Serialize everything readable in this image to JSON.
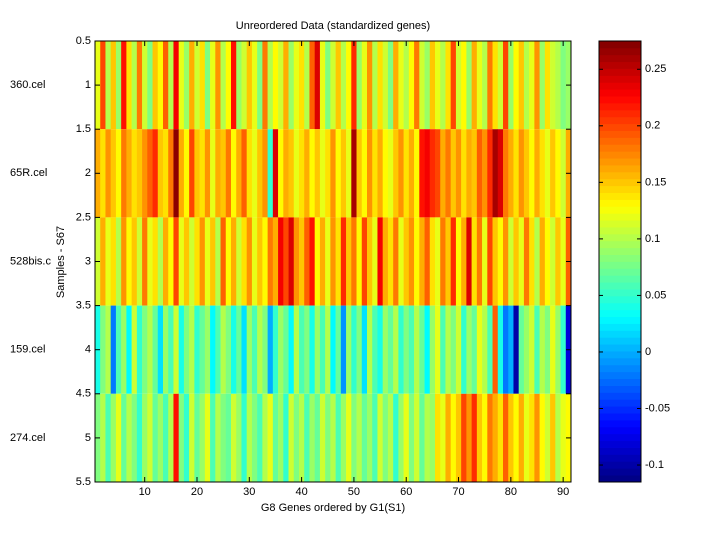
{
  "chart_data": {
    "type": "heatmap",
    "title": "Unreordered Data (standardized genes)",
    "x_label": "G8 Genes ordered by G1(S1)",
    "y_label": "Samples - S67",
    "row_labels": [
      "360.cel",
      "65R.cel",
      "528bis.c",
      "159.cel",
      "274.cel"
    ],
    "xlim": [
      0.5,
      91.5
    ],
    "xticks": [
      10,
      20,
      30,
      40,
      50,
      60,
      70,
      80,
      90
    ],
    "ylim": [
      0.5,
      5.5
    ],
    "yticks": [
      0.5,
      1,
      1.5,
      2,
      2.5,
      3,
      3.5,
      4,
      4.5,
      5,
      5.5
    ],
    "colormap": "jet",
    "clim": [
      -0.115,
      0.275
    ],
    "cticks": [
      -0.1,
      -0.05,
      0,
      0.05,
      0.1,
      0.15,
      0.2,
      0.25
    ],
    "values": [
      [
        0.12,
        0.2,
        0.1,
        0.15,
        0.09,
        0.22,
        0.14,
        0.1,
        0.18,
        0.11,
        0.08,
        0.15,
        0.13,
        0.19,
        0.1,
        0.23,
        0.12,
        0.09,
        0.16,
        0.11,
        0.14,
        0.08,
        0.12,
        0.17,
        0.1,
        0.13,
        0.22,
        0.09,
        0.11,
        0.15,
        0.12,
        0.08,
        0.18,
        0.1,
        0.13,
        0.11,
        0.16,
        0.09,
        0.12,
        0.14,
        0.1,
        0.19,
        0.24,
        0.12,
        0.08,
        0.11,
        0.15,
        0.1,
        0.13,
        0.21,
        0.09,
        0.12,
        0.17,
        0.1,
        0.14,
        0.11,
        0.08,
        0.16,
        0.12,
        0.1,
        0.13,
        0.18,
        0.11,
        0.09,
        0.15,
        0.12,
        0.1,
        0.14,
        0.2,
        0.11,
        0.13,
        0.09,
        0.16,
        0.12,
        0.1,
        0.18,
        0.14,
        0.11,
        0.2,
        0.09,
        0.13,
        0.15,
        0.1,
        0.12,
        0.17,
        0.09,
        0.14,
        0.11,
        0.1,
        0.08,
        0.09
      ],
      [
        0.16,
        0.14,
        0.17,
        0.15,
        0.13,
        0.18,
        0.16,
        0.14,
        0.15,
        0.17,
        0.19,
        0.21,
        0.15,
        0.14,
        0.18,
        0.27,
        0.16,
        0.13,
        0.2,
        0.15,
        0.14,
        0.17,
        0.12,
        0.16,
        0.15,
        0.18,
        0.13,
        0.16,
        0.19,
        0.14,
        0.12,
        0.15,
        0.17,
        0.05,
        0.24,
        0.13,
        0.16,
        0.15,
        0.12,
        0.14,
        0.16,
        0.13,
        0.15,
        0.12,
        0.14,
        0.17,
        0.13,
        0.15,
        0.12,
        0.26,
        0.15,
        0.13,
        0.17,
        0.14,
        0.16,
        0.13,
        0.12,
        0.15,
        0.17,
        0.14,
        0.16,
        0.13,
        0.22,
        0.23,
        0.21,
        0.2,
        0.16,
        0.18,
        0.15,
        0.17,
        0.14,
        0.16,
        0.15,
        0.19,
        0.17,
        0.21,
        0.26,
        0.24,
        0.18,
        0.16,
        0.14,
        0.17,
        0.15,
        0.13,
        0.16,
        0.14,
        0.12,
        0.15,
        0.13,
        0.11,
        0.16
      ],
      [
        0.11,
        0.16,
        0.12,
        0.14,
        0.1,
        0.17,
        0.13,
        0.15,
        0.11,
        0.18,
        0.12,
        0.14,
        0.1,
        0.16,
        0.13,
        0.2,
        0.12,
        0.15,
        0.11,
        0.14,
        0.17,
        0.12,
        0.15,
        0.1,
        0.19,
        0.13,
        0.16,
        0.11,
        0.14,
        0.17,
        0.12,
        0.15,
        0.13,
        0.18,
        0.16,
        0.23,
        0.2,
        0.24,
        0.17,
        0.15,
        0.19,
        0.22,
        0.13,
        0.16,
        0.12,
        0.17,
        0.14,
        0.21,
        0.15,
        0.18,
        0.13,
        0.2,
        0.15,
        0.12,
        0.23,
        0.16,
        0.14,
        0.18,
        0.12,
        0.15,
        0.17,
        0.13,
        0.16,
        0.19,
        0.14,
        0.12,
        0.18,
        0.15,
        0.21,
        0.13,
        0.16,
        0.24,
        0.14,
        0.18,
        0.12,
        0.2,
        0.15,
        0.13,
        0.17,
        0.11,
        0.15,
        0.12,
        0.18,
        0.14,
        0.1,
        0.16,
        0.13,
        0.11,
        0.15,
        0.12,
        0.19
      ],
      [
        0.04,
        0.08,
        0.1,
        -0.02,
        0.06,
        0.09,
        0.03,
        0.11,
        0.05,
        0.08,
        0.1,
        0.07,
        0.02,
        0.09,
        0.06,
        0.11,
        0.04,
        0.08,
        0.1,
        0.05,
        0.07,
        0.09,
        0.03,
        0.06,
        0.1,
        0.08,
        0.04,
        0.07,
        0.02,
        0.09,
        0.06,
        0.1,
        0.08,
        0.0,
        0.05,
        0.09,
        0.07,
        0.03,
        0.1,
        0.06,
        0.08,
        0.04,
        0.09,
        0.06,
        0.1,
        0.03,
        0.07,
        -0.01,
        0.09,
        0.05,
        0.08,
        0.02,
        0.1,
        0.06,
        0.04,
        0.09,
        0.07,
        0.1,
        0.05,
        0.08,
        0.06,
        0.1,
        0.07,
        0.03,
        0.09,
        0.12,
        0.06,
        0.1,
        0.08,
        0.11,
        0.05,
        0.09,
        0.07,
        0.12,
        0.1,
        0.06,
        0.19,
        0.04,
        -0.02,
        0.0,
        -0.1,
        0.07,
        0.09,
        0.11,
        0.06,
        0.1,
        0.08,
        0.12,
        0.09,
        0.05,
        -0.08
      ],
      [
        0.08,
        0.1,
        0.06,
        0.09,
        0.12,
        0.07,
        0.1,
        0.08,
        0.05,
        0.09,
        0.11,
        0.07,
        0.09,
        0.06,
        0.1,
        0.22,
        0.08,
        0.05,
        0.11,
        0.07,
        0.09,
        0.12,
        0.06,
        0.1,
        0.08,
        0.07,
        0.11,
        0.09,
        0.05,
        0.1,
        0.08,
        0.06,
        0.1,
        0.12,
        0.07,
        0.09,
        0.05,
        0.11,
        0.08,
        0.1,
        0.06,
        0.09,
        0.07,
        0.11,
        0.08,
        0.1,
        0.06,
        0.09,
        0.12,
        0.08,
        0.1,
        0.07,
        0.09,
        0.06,
        0.11,
        0.08,
        0.1,
        0.05,
        0.09,
        0.12,
        0.08,
        0.11,
        0.07,
        0.1,
        0.09,
        0.14,
        0.12,
        0.16,
        0.13,
        0.15,
        0.2,
        0.17,
        0.21,
        0.15,
        0.13,
        0.18,
        0.16,
        0.14,
        0.19,
        0.15,
        0.13,
        0.16,
        0.12,
        0.14,
        0.17,
        0.13,
        0.11,
        0.15,
        0.1,
        0.12,
        0.13
      ]
    ]
  }
}
